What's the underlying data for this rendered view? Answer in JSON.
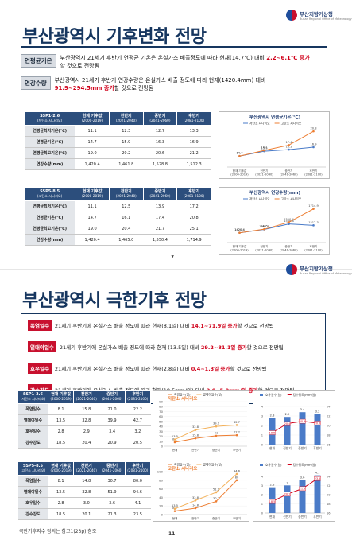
{
  "org": {
    "name": "부산지방기상청",
    "sub": "Busan Regional Office of Meteorology"
  },
  "page1": {
    "title": "부산광역시 기후변화 전망",
    "summary": [
      {
        "chip": "연평균기온",
        "text_a": "부산광역시 21세기 후반기 연평균 기온은 온실가스 배출정도에 따라 현재(14.7℃) 대비",
        "text_red": "2.2~6.1℃ 증가",
        "text_b": "할 것으로 전망됨"
      },
      {
        "chip": "연강수량",
        "text_a": "부산광역시 21세기 후반기 연강수량은 온실가스 배출 정도에 따라 현재(1420.4mm) 대비",
        "text_red": "91.9~294.5mm 증가",
        "text_b": "할 것으로 전망됨"
      }
    ],
    "table_header": [
      {
        "h": "SSP1-2.6",
        "s": "(저탄소 시나리오)"
      },
      {
        "h": "현재 기후값",
        "s": "(2000-2019)"
      },
      {
        "h": "전반기",
        "s": "(2021-2040)"
      },
      {
        "h": "중반기",
        "s": "(2041-2060)"
      },
      {
        "h": "후반기",
        "s": "(2081-2100)"
      }
    ],
    "table_header_b": [
      {
        "h": "SSP5-8.5",
        "s": "(고탄소 시나리오)"
      },
      {
        "h": "현재 기후값",
        "s": "(2000-2019)"
      },
      {
        "h": "전반기",
        "s": "(2021-2040)"
      },
      {
        "h": "중반기",
        "s": "(2041-2060)"
      },
      {
        "h": "후반기",
        "s": "(2081-2100)"
      }
    ],
    "table_a": [
      [
        "연평균최저기온(℃)",
        "11.1",
        "12.3",
        "12.7",
        "13.3"
      ],
      [
        "연평균기온(℃)",
        "14.7",
        "15.9",
        "16.3",
        "16.9"
      ],
      [
        "연평균최고기온(℃)",
        "19.0",
        "20.2",
        "20.6",
        "21.2"
      ],
      [
        "연강수량(mm)",
        "1,420.4",
        "1,461.8",
        "1,528.8",
        "1,512.3"
      ]
    ],
    "table_b": [
      [
        "연평균최저기온(℃)",
        "11.1",
        "12.5",
        "13.9",
        "17.2"
      ],
      [
        "연평균기온(℃)",
        "14.7",
        "16.1",
        "17.4",
        "20.8"
      ],
      [
        "연평균최고기온(℃)",
        "19.0",
        "20.4",
        "21.7",
        "25.1"
      ],
      [
        "연강수량(mm)",
        "1,420.4",
        "1,465.0",
        "1,550.4",
        "1,714.9"
      ]
    ],
    "page_number": "7"
  },
  "page2": {
    "title": "부산광역시 극한기후 전망",
    "summary": [
      {
        "chip": "폭염일수",
        "text_a": "21세기 후반기에 온실가스 배출 정도에 따라 현재(8.1일) 대비",
        "text_red": "14.1~71.9일 증가",
        "text_b": "할 것으로 전망됨"
      },
      {
        "chip": "열대야일수",
        "text_a": "21세기 후반기에 온실가스 배출 정도에 따라 현재 (13.5일) 대비",
        "text_red": "29.2~81.1일 증가",
        "text_b": "할 것으로 전망됨"
      },
      {
        "chip": "호우일수",
        "text_a": "21세기 후반기에 온실가스 배출 정도에 따라 현재(2.8일) 대비",
        "text_red": "0.4~1.3일 증가",
        "text_b": "할 것으로 전망됨"
      },
      {
        "chip": "강수강도",
        "text_a": "21세기 후반기에 온실가스 배출 정도에 따라 현재(18.5mm/일) 대비",
        "text_red": "2.0~5.0mm/일 증가",
        "text_b": "할 것으로 전망됨"
      }
    ],
    "table_header": [
      {
        "h": "SSP1-2.6",
        "s": "(저탄소 시나리오)"
      },
      {
        "h": "현재 기후값",
        "s": "(2000-2019)"
      },
      {
        "h": "전반기",
        "s": "(2021-2040)"
      },
      {
        "h": "중반기",
        "s": "(2041-2060)"
      },
      {
        "h": "후반기",
        "s": "(2081-2100)"
      }
    ],
    "table_header_b": [
      {
        "h": "SSP5-8.5",
        "s": "(고탄소 시나리오)"
      },
      {
        "h": "현재 기후값",
        "s": "(2000-2019)"
      },
      {
        "h": "전반기",
        "s": "(2021-2040)"
      },
      {
        "h": "중반기",
        "s": "(2041-2060)"
      },
      {
        "h": "후반기",
        "s": "(2081-2100)"
      }
    ],
    "table_a": [
      [
        "폭염일수",
        "8.1",
        "15.8",
        "21.0",
        "22.2"
      ],
      [
        "열대야일수",
        "13.5",
        "32.8",
        "39.9",
        "42.7"
      ],
      [
        "호우일수",
        "2.8",
        "2.9",
        "3.4",
        "3.2"
      ],
      [
        "강수강도",
        "18.5",
        "20.4",
        "20.9",
        "20.5"
      ]
    ],
    "table_b": [
      [
        "폭염일수",
        "8.1",
        "14.8",
        "30.7",
        "80.0"
      ],
      [
        "열대야일수",
        "13.5",
        "32.8",
        "51.9",
        "94.6"
      ],
      [
        "호우일수",
        "2.8",
        "3.0",
        "3.6",
        "4.1"
      ],
      [
        "강수강도",
        "18.5",
        "20.1",
        "21.3",
        "23.5"
      ]
    ],
    "note": "극한기후지수 정의는 참고1(23p) 참조",
    "page_number": "11"
  },
  "chart_data": [
    {
      "type": "line",
      "title": "부산광역시 연평균기온(℃)",
      "categories": [
        "현재 기후값\n(2000-2019)",
        "전반기\n(2021-2040)",
        "중반기\n(2041-2060)",
        "후반기\n(2081-2100)"
      ],
      "series": [
        {
          "name": "저탄소 시나리오",
          "color": "#4a7bc8",
          "values": [
            14.7,
            15.9,
            16.3,
            16.9
          ]
        },
        {
          "name": "고탄소 시나리오",
          "color": "#ed7d31",
          "values": [
            14.7,
            16.1,
            17.4,
            20.8
          ]
        }
      ],
      "ylim": [
        12,
        22
      ]
    },
    {
      "type": "line",
      "title": "부산광역시 연강수량(mm)",
      "categories": [
        "현재 기후값\n(2000-2019)",
        "전반기\n(2021-2040)",
        "중반기\n(2041-2060)",
        "후반기\n(2081-2100)"
      ],
      "series": [
        {
          "name": "저탄소 시나리오",
          "color": "#4a7bc8",
          "values": [
            1420.4,
            1461.8,
            1528.8,
            1512.3
          ]
        },
        {
          "name": "고탄소 시나리오",
          "color": "#ed7d31",
          "values": [
            1420.4,
            1465.0,
            1550.4,
            1714.9
          ]
        }
      ],
      "ylim": [
        1300,
        1800
      ]
    },
    {
      "type": "line",
      "subtitle": "저탄소 시나리오",
      "categories": [
        "현재",
        "전반기",
        "중반기",
        "후반기"
      ],
      "series": [
        {
          "name": "폭염일수(일)",
          "color": "#ed7d31",
          "values": [
            8.1,
            15.8,
            21.0,
            22.2
          ]
        },
        {
          "name": "열대야일수(일)",
          "color": "#f3b15a",
          "values": [
            13.5,
            32.8,
            39.9,
            42.7
          ]
        }
      ],
      "ylim": [
        0,
        90
      ]
    },
    {
      "type": "bar",
      "categories": [
        "현재",
        "전반기",
        "중반기",
        "후반기"
      ],
      "series": [
        {
          "name": "호우일수(일)",
          "color": "#4a7bc8",
          "values": [
            2.8,
            2.9,
            3.4,
            3.2
          ]
        },
        {
          "name": "강수강도(mm/일)",
          "color": "#d0021b",
          "values": [
            18.5,
            20.4,
            20.9,
            20.5
          ]
        }
      ],
      "ylim": [
        0,
        4.5
      ]
    },
    {
      "type": "line",
      "subtitle": "고탄소 시나리오",
      "categories": [
        "현재",
        "전반기",
        "중반기",
        "후반기"
      ],
      "series": [
        {
          "name": "폭염일수(일)",
          "color": "#ed7d31",
          "values": [
            8.1,
            14.8,
            30.7,
            80.0
          ]
        },
        {
          "name": "열대야일수(일)",
          "color": "#f3b15a",
          "values": [
            13.5,
            32.8,
            51.9,
            94.6
          ]
        }
      ],
      "ylim": [
        0,
        100
      ]
    },
    {
      "type": "bar",
      "categories": [
        "현재",
        "전반기",
        "중반기",
        "후반기"
      ],
      "series": [
        {
          "name": "호우일수(일)",
          "color": "#4a7bc8",
          "values": [
            2.8,
            3.0,
            3.6,
            4.1
          ]
        },
        {
          "name": "강수강도(mm/일)",
          "color": "#d0021b",
          "values": [
            18.5,
            20.1,
            21.3,
            23.5
          ]
        }
      ],
      "ylim": [
        0,
        4.5
      ]
    }
  ]
}
